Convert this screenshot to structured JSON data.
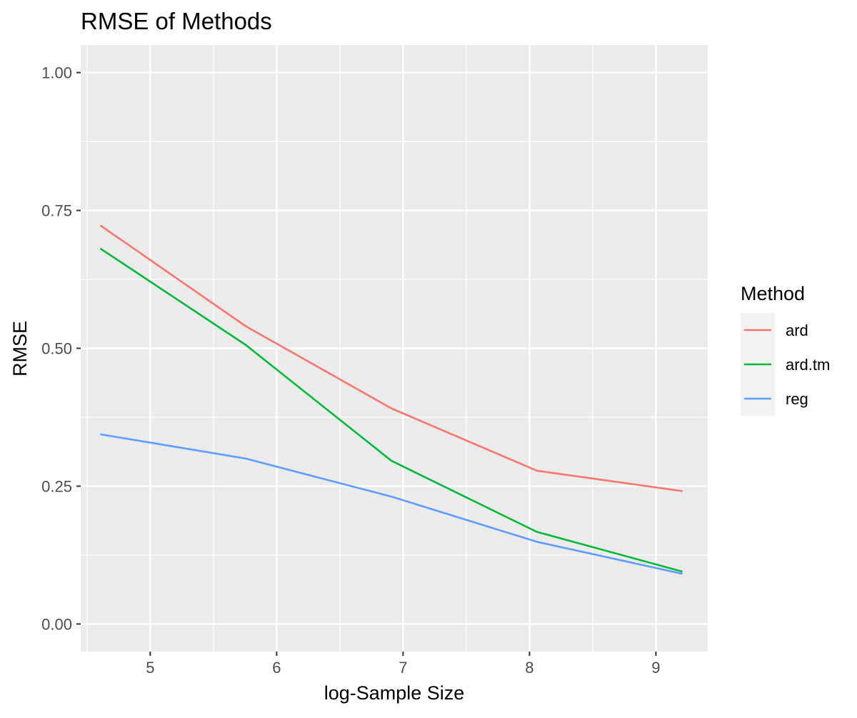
{
  "chart_data": {
    "type": "line",
    "title": "RMSE of Methods",
    "xlabel": "log-Sample Size",
    "ylabel": "RMSE",
    "xlim": [
      4.45,
      9.41
    ],
    "ylim": [
      -0.05,
      1.05
    ],
    "x_ticks": [
      5,
      6,
      7,
      8,
      9
    ],
    "x_tick_labels": [
      "5",
      "6",
      "7",
      "8",
      "9"
    ],
    "y_ticks": [
      0,
      0.25,
      0.5,
      0.75,
      1
    ],
    "y_tick_labels": [
      "0.00",
      "0.25",
      "0.50",
      "0.75",
      "1.00"
    ],
    "grid": true,
    "legend": {
      "title": "Method",
      "position": "right"
    },
    "x": [
      4.605,
      5.756,
      6.908,
      8.059,
      9.21
    ],
    "series": [
      {
        "name": "ard",
        "color": "#F8766D",
        "values": [
          0.723,
          0.54,
          0.391,
          0.278,
          0.241
        ]
      },
      {
        "name": "ard.tm",
        "color": "#00BA38",
        "values": [
          0.681,
          0.506,
          0.296,
          0.167,
          0.095
        ]
      },
      {
        "name": "reg",
        "color": "#619CFF",
        "values": [
          0.344,
          0.3,
          0.231,
          0.149,
          0.091
        ]
      }
    ]
  }
}
